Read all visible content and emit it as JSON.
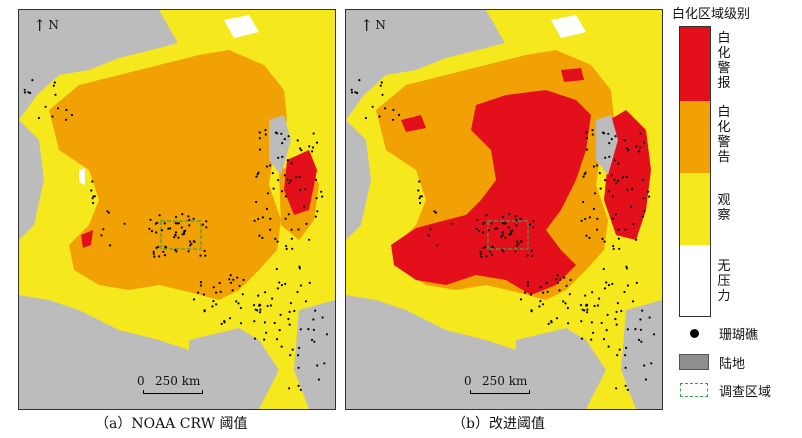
{
  "north_label": "N",
  "scale_label": {
    "zero": "0",
    "distance": "250 km"
  },
  "panels": [
    {
      "id": "a",
      "caption": "（a）NOAA CRW 阈值"
    },
    {
      "id": "b",
      "caption": "（b）改进阈值"
    }
  ],
  "legend": {
    "title": "白化区域级别",
    "levels": [
      {
        "label": "白化警报",
        "color": "#e3101b"
      },
      {
        "label": "白化警告",
        "color": "#f2a104"
      },
      {
        "label": "观察",
        "color": "#f5e91e"
      },
      {
        "label": "无压力",
        "color": "#ffffff"
      }
    ],
    "symbols": [
      {
        "label": "珊瑚礁",
        "icon": "coral-reef-dot"
      },
      {
        "label": "陆地",
        "color": "#8e8e8e"
      },
      {
        "label": "调查区域",
        "color": "#3aa24a"
      }
    ]
  },
  "colors": {
    "land": "#bcbcbc"
  }
}
